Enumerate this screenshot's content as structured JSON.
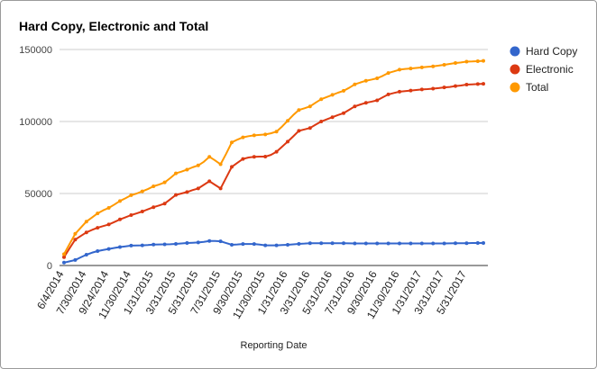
{
  "chart_data": {
    "type": "line",
    "title": "Hard Copy, Electronic and Total",
    "xlabel": "Reporting Date",
    "ylabel": "",
    "ylim": [
      0,
      150000
    ],
    "y_ticks": [
      0,
      50000,
      100000,
      150000
    ],
    "grid": true,
    "legend_position": "right",
    "x": [
      "6/4/2014",
      "6/17/2014",
      "7/1/2014",
      "7/15/2014",
      "7/30/2014",
      "8/15/2014",
      "8/29/2014",
      "9/12/2014",
      "9/24/2014",
      "10/10/2014",
      "10/24/2014",
      "11/7/2014",
      "11/30/2014",
      "12/15/2014",
      "12/31/2014",
      "1/15/2015",
      "1/31/2015",
      "2/15/2015",
      "2/28/2015",
      "3/15/2015",
      "3/31/2015",
      "4/15/2015",
      "4/30/2015",
      "5/15/2015",
      "5/31/2015",
      "6/15/2015",
      "6/30/2015",
      "7/15/2015",
      "7/31/2015",
      "8/15/2015",
      "8/31/2015",
      "9/15/2015",
      "9/30/2015",
      "10/15/2015",
      "10/31/2015",
      "11/15/2015",
      "11/30/2015",
      "12/15/2015",
      "12/31/2015",
      "1/15/2016",
      "1/31/2016",
      "2/15/2016",
      "2/29/2016",
      "3/15/2016",
      "3/31/2016",
      "4/15/2016",
      "4/30/2016",
      "5/15/2016",
      "5/31/2016",
      "6/15/2016",
      "6/30/2016",
      "7/15/2016",
      "7/31/2016",
      "8/15/2016",
      "8/31/2016",
      "9/15/2016",
      "9/30/2016",
      "10/15/2016",
      "10/31/2016",
      "11/15/2016",
      "11/30/2016",
      "12/15/2016",
      "12/31/2016",
      "1/15/2017",
      "1/31/2017",
      "2/15/2017",
      "2/28/2017",
      "3/15/2017",
      "3/31/2017",
      "4/15/2017",
      "4/30/2017",
      "5/15/2017",
      "5/31/2017",
      "6/15/2017",
      "6/30/2017",
      "7/15/2017"
    ],
    "x_tick_labels": [
      "6/4/2014",
      "7/30/2014",
      "9/24/2014",
      "11/30/2014",
      "1/31/2015",
      "3/31/2015",
      "5/31/2015",
      "7/31/2015",
      "9/30/2015",
      "11/30/2015",
      "1/31/2016",
      "3/31/2016",
      "5/31/2016",
      "7/31/2016",
      "9/30/2016",
      "11/30/2016",
      "1/31/2017",
      "3/31/2017",
      "5/31/2017"
    ],
    "x_tick_indices": [
      0,
      4,
      8,
      12,
      16,
      20,
      24,
      28,
      32,
      36,
      40,
      44,
      48,
      52,
      56,
      60,
      64,
      68,
      72
    ],
    "marker_every": 2,
    "series": [
      {
        "name": "Hard Copy",
        "color": "#3366cc",
        "values": [
          2000,
          2900,
          3800,
          5700,
          7500,
          8900,
          10000,
          10800,
          11500,
          12200,
          12800,
          13300,
          13800,
          13900,
          14000,
          14200,
          14500,
          14600,
          14700,
          14800,
          15000,
          15300,
          15600,
          15800,
          16000,
          16400,
          17000,
          17000,
          16800,
          15600,
          14400,
          14600,
          14900,
          14900,
          14900,
          14500,
          14000,
          14000,
          14000,
          14200,
          14400,
          14700,
          15000,
          15200,
          15500,
          15500,
          15500,
          15500,
          15500,
          15500,
          15500,
          15400,
          15300,
          15300,
          15300,
          15300,
          15300,
          15300,
          15300,
          15300,
          15300,
          15300,
          15300,
          15300,
          15300,
          15300,
          15300,
          15300,
          15300,
          15400,
          15500,
          15500,
          15500,
          15600,
          15600,
          15600
        ]
      },
      {
        "name": "Electronic",
        "color": "#dc3912",
        "values": [
          5800,
          12000,
          18000,
          20500,
          23000,
          24700,
          26200,
          27400,
          28500,
          30200,
          32000,
          33500,
          35000,
          36200,
          37500,
          39000,
          40500,
          41700,
          43000,
          46000,
          49000,
          50000,
          51000,
          52400,
          53500,
          56000,
          58500,
          56000,
          53500,
          61000,
          68500,
          71300,
          74000,
          75000,
          75500,
          75600,
          75600,
          76800,
          79000,
          82500,
          86000,
          89700,
          93500,
          94500,
          95500,
          97800,
          100000,
          101500,
          103000,
          104500,
          105800,
          108100,
          110500,
          111800,
          113000,
          113800,
          114700,
          116800,
          118800,
          119800,
          120700,
          121100,
          121500,
          121900,
          122300,
          122500,
          122800,
          123200,
          123700,
          124000,
          124600,
          125000,
          125600,
          125800,
          126000,
          126200
        ]
      },
      {
        "name": "Total",
        "color": "#ff9900",
        "values": [
          7900,
          15000,
          22000,
          26300,
          30500,
          33300,
          36200,
          38300,
          40000,
          42300,
          44800,
          46700,
          48800,
          50000,
          51500,
          53100,
          55000,
          56200,
          57700,
          60700,
          64000,
          65200,
          66600,
          68200,
          69500,
          72000,
          75500,
          73000,
          70300,
          77600,
          85500,
          87400,
          89000,
          89800,
          90400,
          90700,
          91000,
          91800,
          93000,
          96500,
          100500,
          104500,
          108000,
          109200,
          110500,
          113100,
          115500,
          117000,
          118500,
          120000,
          121300,
          123400,
          125800,
          127100,
          128300,
          129100,
          130000,
          131700,
          133700,
          134800,
          136000,
          136500,
          136800,
          137200,
          137600,
          138000,
          138300,
          138800,
          139400,
          140000,
          140600,
          141000,
          141600,
          141700,
          141900,
          142100
        ]
      }
    ]
  }
}
